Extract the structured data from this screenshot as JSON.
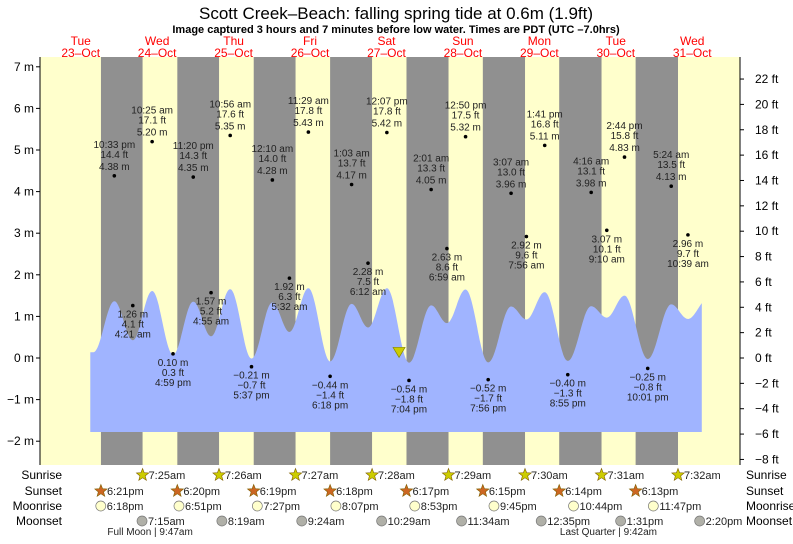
{
  "title": "Scott Creek–Beach: falling  spring tide at 0.6m (1.9ft)",
  "subtitle": "Image captured 3 hours and 7 minutes before low water. Times are PDT (UTC –7.0hrs)",
  "colors": {
    "day": "#ffffcc",
    "night": "#909090",
    "water": "#a0b4ff",
    "day_label": "#ff0000",
    "marker": "#cccc00",
    "sun_star": "#cccc00",
    "sunset_star": "#cc6622",
    "moonrise": "#ffffcc",
    "moonset": "#b0b0a8"
  },
  "chart_data": {
    "type": "area",
    "title": "Scott Creek–Beach tide chart",
    "left_axis": {
      "unit": "m",
      "ticks": [
        {
          "v": 7,
          "label": "7 m"
        },
        {
          "v": 6,
          "label": "6 m"
        },
        {
          "v": 5,
          "label": "5 m"
        },
        {
          "v": 4,
          "label": "4 m"
        },
        {
          "v": 3,
          "label": "3 m"
        },
        {
          "v": 2,
          "label": "2 m"
        },
        {
          "v": 1,
          "label": "1 m"
        },
        {
          "v": 0,
          "label": "0 m"
        },
        {
          "v": -1,
          "label": "−1 m"
        },
        {
          "v": -2,
          "label": "−2 m"
        }
      ]
    },
    "right_axis": {
      "unit": "ft",
      "ticks": [
        {
          "v": 22,
          "label": "22 ft"
        },
        {
          "v": 20,
          "label": "20 ft"
        },
        {
          "v": 18,
          "label": "18 ft"
        },
        {
          "v": 16,
          "label": "16 ft"
        },
        {
          "v": 14,
          "label": "14 ft"
        },
        {
          "v": 12,
          "label": "12 ft"
        },
        {
          "v": 10,
          "label": "10 ft"
        },
        {
          "v": 8,
          "label": "8 ft"
        },
        {
          "v": 6,
          "label": "6 ft"
        },
        {
          "v": 4,
          "label": "4 ft"
        },
        {
          "v": 2,
          "label": "2 ft"
        },
        {
          "v": 0,
          "label": "0 ft"
        },
        {
          "v": -2,
          "label": "−2 ft"
        },
        {
          "v": -4,
          "label": "−4 ft"
        },
        {
          "v": -6,
          "label": "−6 ft"
        },
        {
          "v": -8,
          "label": "−8 ft"
        }
      ]
    },
    "days": [
      {
        "dow": "Tue",
        "date": "23–Oct"
      },
      {
        "dow": "Wed",
        "date": "24–Oct"
      },
      {
        "dow": "Thu",
        "date": "25–Oct"
      },
      {
        "dow": "Fri",
        "date": "26–Oct"
      },
      {
        "dow": "Sat",
        "date": "27–Oct"
      },
      {
        "dow": "Sun",
        "date": "28–Oct"
      },
      {
        "dow": "Mon",
        "date": "29–Oct"
      },
      {
        "dow": "Tue",
        "date": "30–Oct"
      },
      {
        "dow": "Wed",
        "date": "31–Oct"
      }
    ],
    "extremes": [
      {
        "day": 0,
        "hour": 22.55,
        "type": "high",
        "time": "10:33 pm",
        "ft": "14.4 ft",
        "m": 4.38,
        "m_label": "4.38 m"
      },
      {
        "day": 1,
        "hour": 4.35,
        "type": "low",
        "time": "4:21 am",
        "ft": "4.1 ft",
        "m": 1.26,
        "m_label": "1.26 m"
      },
      {
        "day": 1,
        "hour": 10.42,
        "type": "high",
        "time": "10:25 am",
        "ft": "17.1 ft",
        "m": 5.2,
        "m_label": "5.20 m"
      },
      {
        "day": 1,
        "hour": 16.98,
        "type": "low",
        "time": "4:59 pm",
        "ft": "0.3 ft",
        "m": 0.1,
        "m_label": "0.10 m"
      },
      {
        "day": 1,
        "hour": 23.33,
        "type": "high",
        "time": "11:20 pm",
        "ft": "14.3 ft",
        "m": 4.35,
        "m_label": "4.35 m"
      },
      {
        "day": 2,
        "hour": 4.92,
        "type": "low",
        "time": "4:55 am",
        "ft": "5.2 ft",
        "m": 1.57,
        "m_label": "1.57 m"
      },
      {
        "day": 2,
        "hour": 10.93,
        "type": "high",
        "time": "10:56 am",
        "ft": "17.6 ft",
        "m": 5.35,
        "m_label": "5.35 m"
      },
      {
        "day": 2,
        "hour": 17.62,
        "type": "low",
        "time": "5:37 pm",
        "ft": "−0.7 ft",
        "m": -0.21,
        "m_label": "−0.21 m"
      },
      {
        "day": 3,
        "hour": 0.17,
        "type": "high",
        "time": "12:10 am",
        "ft": "14.0 ft",
        "m": 4.28,
        "m_label": "4.28 m"
      },
      {
        "day": 3,
        "hour": 5.53,
        "type": "low",
        "time": "5:32 am",
        "ft": "6.3 ft",
        "m": 1.92,
        "m_label": "1.92 m"
      },
      {
        "day": 3,
        "hour": 11.48,
        "type": "high",
        "time": "11:29 am",
        "ft": "17.8 ft",
        "m": 5.43,
        "m_label": "5.43 m"
      },
      {
        "day": 3,
        "hour": 18.3,
        "type": "low",
        "time": "6:18 pm",
        "ft": "−1.4 ft",
        "m": -0.44,
        "m_label": "−0.44 m"
      },
      {
        "day": 4,
        "hour": 1.05,
        "type": "high",
        "time": "1:03 am",
        "ft": "13.7 ft",
        "m": 4.17,
        "m_label": "4.17 m"
      },
      {
        "day": 4,
        "hour": 6.2,
        "type": "low",
        "time": "6:12 am",
        "ft": "7.5 ft",
        "m": 2.28,
        "m_label": "2.28 m"
      },
      {
        "day": 4,
        "hour": 12.12,
        "type": "high",
        "time": "12:07 pm",
        "ft": "17.8 ft",
        "m": 5.42,
        "m_label": "5.42 m"
      },
      {
        "day": 4,
        "hour": 19.07,
        "type": "low",
        "time": "7:04 pm",
        "ft": "−1.8 ft",
        "m": -0.54,
        "m_label": "−0.54 m"
      },
      {
        "day": 5,
        "hour": 2.02,
        "type": "high",
        "time": "2:01 am",
        "ft": "13.3 ft",
        "m": 4.05,
        "m_label": "4.05 m"
      },
      {
        "day": 5,
        "hour": 6.98,
        "type": "low",
        "time": "6:59 am",
        "ft": "8.6 ft",
        "m": 2.63,
        "m_label": "2.63 m"
      },
      {
        "day": 5,
        "hour": 12.83,
        "type": "high",
        "time": "12:50 pm",
        "ft": "17.5 ft",
        "m": 5.32,
        "m_label": "5.32 m"
      },
      {
        "day": 5,
        "hour": 19.93,
        "type": "low",
        "time": "7:56 pm",
        "ft": "−1.7 ft",
        "m": -0.52,
        "m_label": "−0.52 m"
      },
      {
        "day": 6,
        "hour": 3.12,
        "type": "high",
        "time": "3:07 am",
        "ft": "13.0 ft",
        "m": 3.96,
        "m_label": "3.96 m"
      },
      {
        "day": 6,
        "hour": 7.93,
        "type": "low",
        "time": "7:56 am",
        "ft": "9.6 ft",
        "m": 2.92,
        "m_label": "2.92 m"
      },
      {
        "day": 6,
        "hour": 13.68,
        "type": "high",
        "time": "1:41 pm",
        "ft": "16.8 ft",
        "m": 5.11,
        "m_label": "5.11 m"
      },
      {
        "day": 6,
        "hour": 20.92,
        "type": "low",
        "time": "8:55 pm",
        "ft": "−1.3 ft",
        "m": -0.4,
        "m_label": "−0.40 m"
      },
      {
        "day": 7,
        "hour": 4.27,
        "type": "high",
        "time": "4:16 am",
        "ft": "13.1 ft",
        "m": 3.98,
        "m_label": "3.98 m"
      },
      {
        "day": 7,
        "hour": 9.17,
        "type": "low",
        "time": "9:10 am",
        "ft": "10.1 ft",
        "m": 3.07,
        "m_label": "3.07 m"
      },
      {
        "day": 7,
        "hour": 14.73,
        "type": "high",
        "time": "2:44 pm",
        "ft": "15.8 ft",
        "m": 4.83,
        "m_label": "4.83 m"
      },
      {
        "day": 7,
        "hour": 22.02,
        "type": "low",
        "time": "10:01 pm",
        "ft": "−0.8 ft",
        "m": -0.25,
        "m_label": "−0.25 m"
      },
      {
        "day": 8,
        "hour": 5.4,
        "type": "high",
        "time": "5:24 am",
        "ft": "13.5 ft",
        "m": 4.13,
        "m_label": "4.13 m"
      },
      {
        "day": 8,
        "hour": 10.65,
        "type": "low",
        "time": "10:39 am",
        "ft": "9.7 ft",
        "m": 2.96,
        "m_label": "2.96 m"
      }
    ],
    "current": {
      "day": 4,
      "hour": 15.95,
      "m": 0.6
    }
  },
  "almanac": {
    "labels": {
      "sunrise": "Sunrise",
      "sunset": "Sunset",
      "moonrise": "Moonrise",
      "moonset": "Moonset"
    },
    "sunrise": [
      {
        "day": 1,
        "hour": 7.42,
        "t": "7:25am"
      },
      {
        "day": 2,
        "hour": 7.43,
        "t": "7:26am"
      },
      {
        "day": 3,
        "hour": 7.45,
        "t": "7:27am"
      },
      {
        "day": 4,
        "hour": 7.47,
        "t": "7:28am"
      },
      {
        "day": 5,
        "hour": 7.48,
        "t": "7:29am"
      },
      {
        "day": 6,
        "hour": 7.5,
        "t": "7:30am"
      },
      {
        "day": 7,
        "hour": 7.52,
        "t": "7:31am"
      },
      {
        "day": 8,
        "hour": 7.53,
        "t": "7:32am"
      }
    ],
    "sunset": [
      {
        "day": 0,
        "hour": 18.35,
        "t": "6:21pm"
      },
      {
        "day": 1,
        "hour": 18.33,
        "t": "6:20pm"
      },
      {
        "day": 2,
        "hour": 18.32,
        "t": "6:19pm"
      },
      {
        "day": 3,
        "hour": 18.3,
        "t": "6:18pm"
      },
      {
        "day": 4,
        "hour": 18.28,
        "t": "6:17pm"
      },
      {
        "day": 5,
        "hour": 18.25,
        "t": "6:15pm"
      },
      {
        "day": 6,
        "hour": 18.23,
        "t": "6:14pm"
      },
      {
        "day": 7,
        "hour": 18.22,
        "t": "6:13pm"
      }
    ],
    "moonrise": [
      {
        "day": 0,
        "hour": 18.3,
        "t": "6:18pm"
      },
      {
        "day": 1,
        "hour": 18.85,
        "t": "6:51pm"
      },
      {
        "day": 2,
        "hour": 19.45,
        "t": "7:27pm"
      },
      {
        "day": 3,
        "hour": 20.12,
        "t": "8:07pm"
      },
      {
        "day": 4,
        "hour": 20.88,
        "t": "8:53pm"
      },
      {
        "day": 5,
        "hour": 21.75,
        "t": "9:45pm"
      },
      {
        "day": 6,
        "hour": 22.73,
        "t": "10:44pm"
      },
      {
        "day": 7,
        "hour": 23.78,
        "t": "11:47pm"
      }
    ],
    "moonset": [
      {
        "day": 1,
        "hour": 7.25,
        "t": "7:15am"
      },
      {
        "day": 2,
        "hour": 8.32,
        "t": "8:19am"
      },
      {
        "day": 3,
        "hour": 9.4,
        "t": "9:24am"
      },
      {
        "day": 4,
        "hour": 10.48,
        "t": "10:29am"
      },
      {
        "day": 5,
        "hour": 11.57,
        "t": "11:34am"
      },
      {
        "day": 6,
        "hour": 12.58,
        "t": "12:35pm"
      },
      {
        "day": 7,
        "hour": 13.52,
        "t": "1:31pm"
      },
      {
        "day": 8,
        "hour": 14.33,
        "t": "2:20pm"
      }
    ],
    "phases": [
      {
        "day": 1,
        "hour": 9.78,
        "t": "Full Moon | 9:47am"
      },
      {
        "day": 7,
        "hour": 9.7,
        "t": "Last Quarter | 9:42am"
      }
    ]
  }
}
